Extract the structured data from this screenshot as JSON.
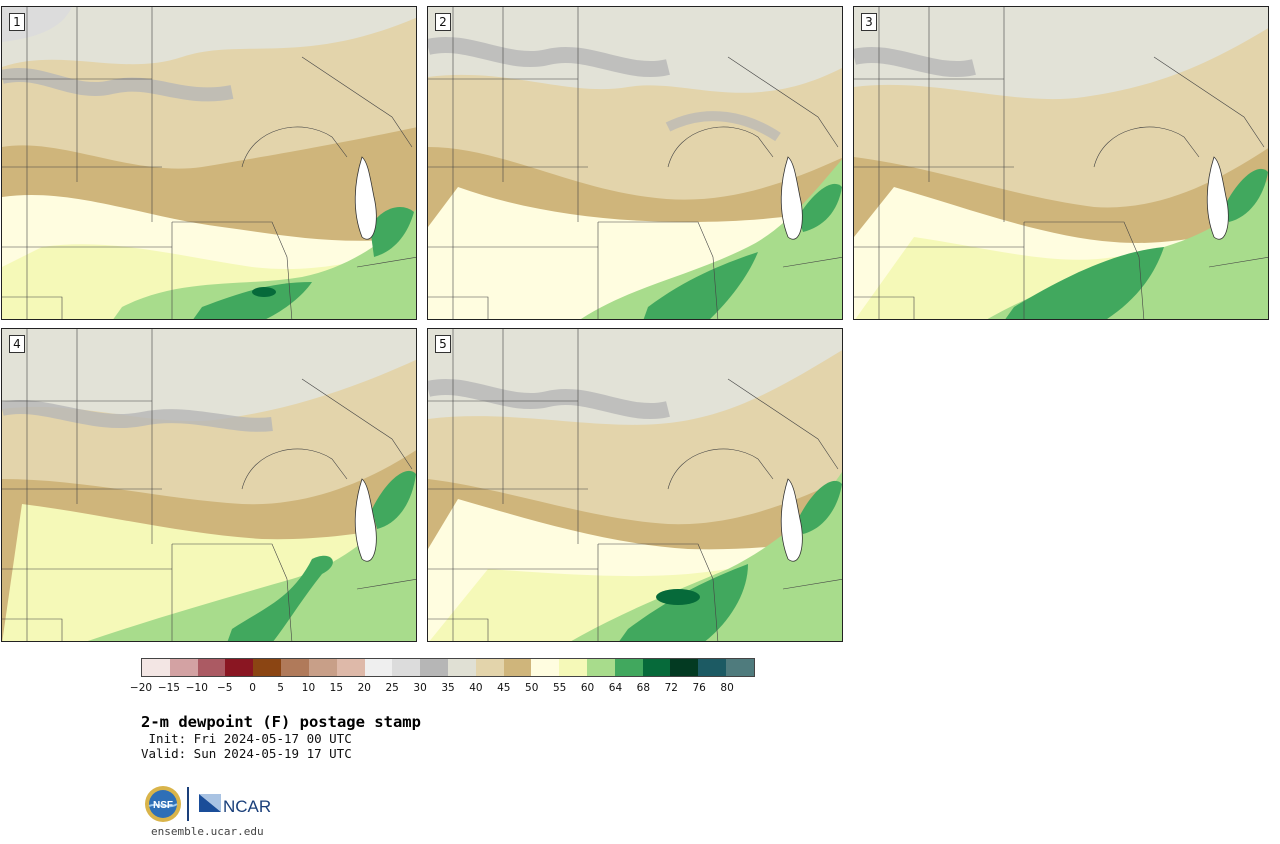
{
  "panels": [
    {
      "label": "1"
    },
    {
      "label": "2"
    },
    {
      "label": "3"
    },
    {
      "label": "4"
    },
    {
      "label": "5"
    }
  ],
  "colorbar": {
    "ticks": [
      "−20",
      "−15",
      "−10",
      "−5",
      "0",
      "5",
      "10",
      "15",
      "20",
      "25",
      "30",
      "35",
      "40",
      "45",
      "50",
      "55",
      "60",
      "64",
      "68",
      "72",
      "76",
      "80"
    ],
    "colors": [
      "#f3e6e4",
      "#d3a2a3",
      "#ab5a63",
      "#8a1622",
      "#8b4513",
      "#b07a5a",
      "#c89f88",
      "#deb9a9",
      "#efefef",
      "#dcdcdc",
      "#b6b6b6",
      "#e0e0d4",
      "#e3d4ab",
      "#cfb57b",
      "#fffde0",
      "#f5f9b8",
      "#a8dc8c",
      "#41a85e",
      "#066a3a",
      "#033a22",
      "#1c5a63",
      "#4f7b7d"
    ]
  },
  "title": "2-m dewpoint (F) postage stamp",
  "init_line": " Init: Fri 2024-05-17 00 UTC",
  "valid_line": "Valid: Sun 2024-05-19 17 UTC",
  "logos": {
    "nsf_text": "NSF",
    "ncar_text": "NCAR"
  },
  "url": "ensemble.ucar.edu"
}
